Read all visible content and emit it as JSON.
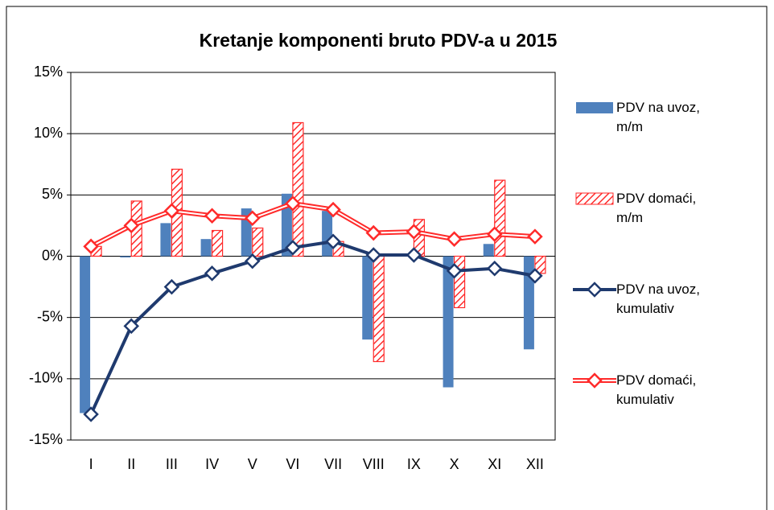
{
  "chart_data": {
    "type": "bar",
    "title": "Kretanje komponenti bruto PDV-a u 2015",
    "categories": [
      "I",
      "II",
      "III",
      "IV",
      "V",
      "VI",
      "VII",
      "VIII",
      "IX",
      "X",
      "XI",
      "XII"
    ],
    "series": [
      {
        "name": "PDV na uvoz, m/m",
        "type": "bar",
        "color": "#4f81bd",
        "values": [
          -12.8,
          -0.1,
          2.7,
          1.4,
          3.9,
          5.1,
          3.7,
          -6.8,
          0.2,
          -10.7,
          1.0,
          -7.6
        ]
      },
      {
        "name": "PDV domaći, m/m",
        "type": "bar",
        "color": "#ff2a2a",
        "hatch": true,
        "values": [
          0.8,
          4.5,
          7.1,
          2.1,
          2.3,
          10.9,
          1.2,
          -8.6,
          3.0,
          -4.2,
          6.2,
          -1.4
        ]
      },
      {
        "name": "PDV na uvoz, kumulativ",
        "type": "line",
        "color": "#1f3a6e",
        "values": [
          -12.9,
          -5.7,
          -2.5,
          -1.4,
          -0.4,
          0.7,
          1.2,
          0.1,
          0.1,
          -1.2,
          -1.0,
          -1.6
        ]
      },
      {
        "name": "PDV domaći, kumulativ",
        "type": "line",
        "color": "#ff2a2a",
        "values": [
          0.8,
          2.5,
          3.7,
          3.3,
          3.1,
          4.3,
          3.8,
          1.9,
          2.0,
          1.4,
          1.8,
          1.6
        ]
      }
    ],
    "ylim": [
      -15,
      15
    ],
    "yticks": [
      {
        "value": -15,
        "label": "-15%"
      },
      {
        "value": -10,
        "label": "-10%"
      },
      {
        "value": -5,
        "label": "-5%"
      },
      {
        "value": 0,
        "label": "0%"
      },
      {
        "value": 5,
        "label": "5%"
      },
      {
        "value": 10,
        "label": "10%"
      },
      {
        "value": 15,
        "label": "15%"
      }
    ],
    "grid": true,
    "legend": "right"
  }
}
